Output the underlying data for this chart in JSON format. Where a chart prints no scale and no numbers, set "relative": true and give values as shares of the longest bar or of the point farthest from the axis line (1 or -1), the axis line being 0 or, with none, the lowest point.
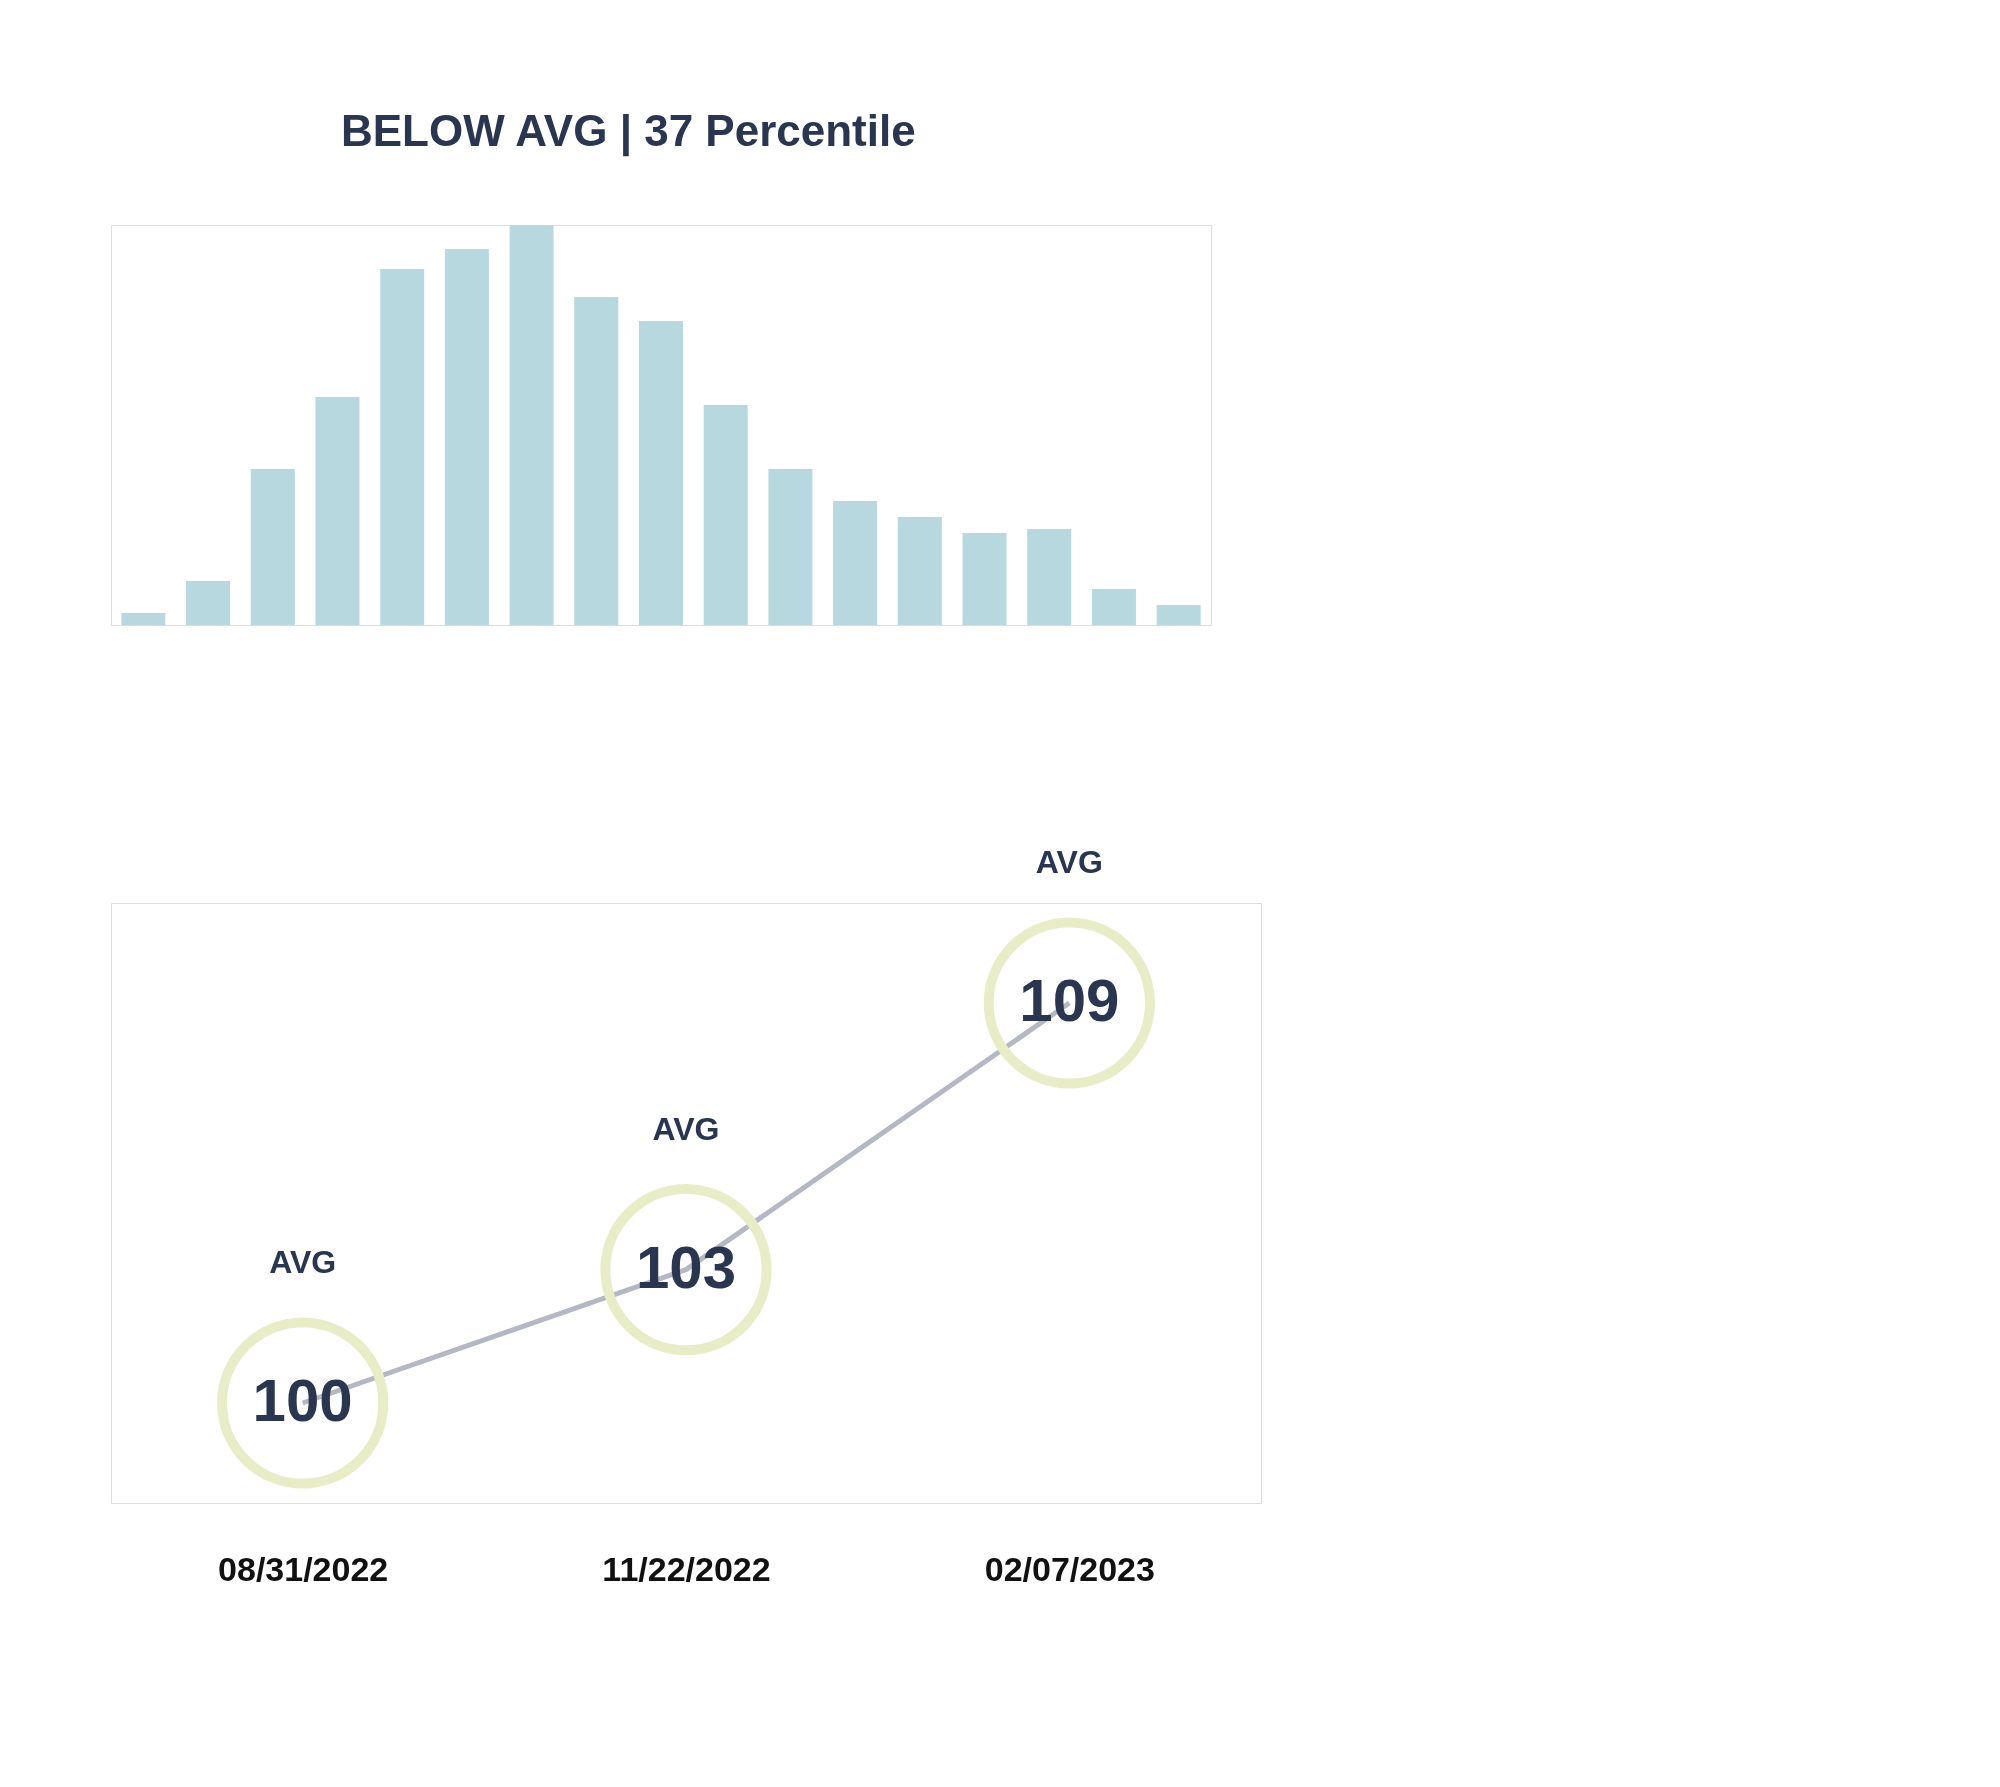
{
  "chart_data": [
    {
      "type": "bar",
      "relative": true,
      "categories": [
        null,
        null,
        null,
        null,
        null,
        null,
        null,
        null,
        null,
        null,
        null,
        null,
        null,
        null,
        null,
        null,
        null
      ],
      "values": [
        0.03,
        0.11,
        0.39,
        0.57,
        0.89,
        0.94,
        1,
        0.82,
        0.76,
        0.55,
        0.39,
        0.31,
        0.27,
        0.23,
        0.24,
        0.09,
        0.05
      ],
      "color": "#b7d8de",
      "annotations": [
        "BELOW AVG | 37 Percentile"
      ]
    },
    {
      "type": "line",
      "categories": [
        "08/31/2022",
        "11/22/2022",
        "02/07/2023"
      ],
      "series": [
        {
          "color": "#b4b7c4",
          "values": [
            100,
            103,
            109
          ]
        }
      ],
      "tick_labels": "x",
      "line_style": "solid",
      "data_labels": true,
      "annotations": [
        "AVG",
        "AVG",
        "AVG"
      ]
    }
  ]
}
